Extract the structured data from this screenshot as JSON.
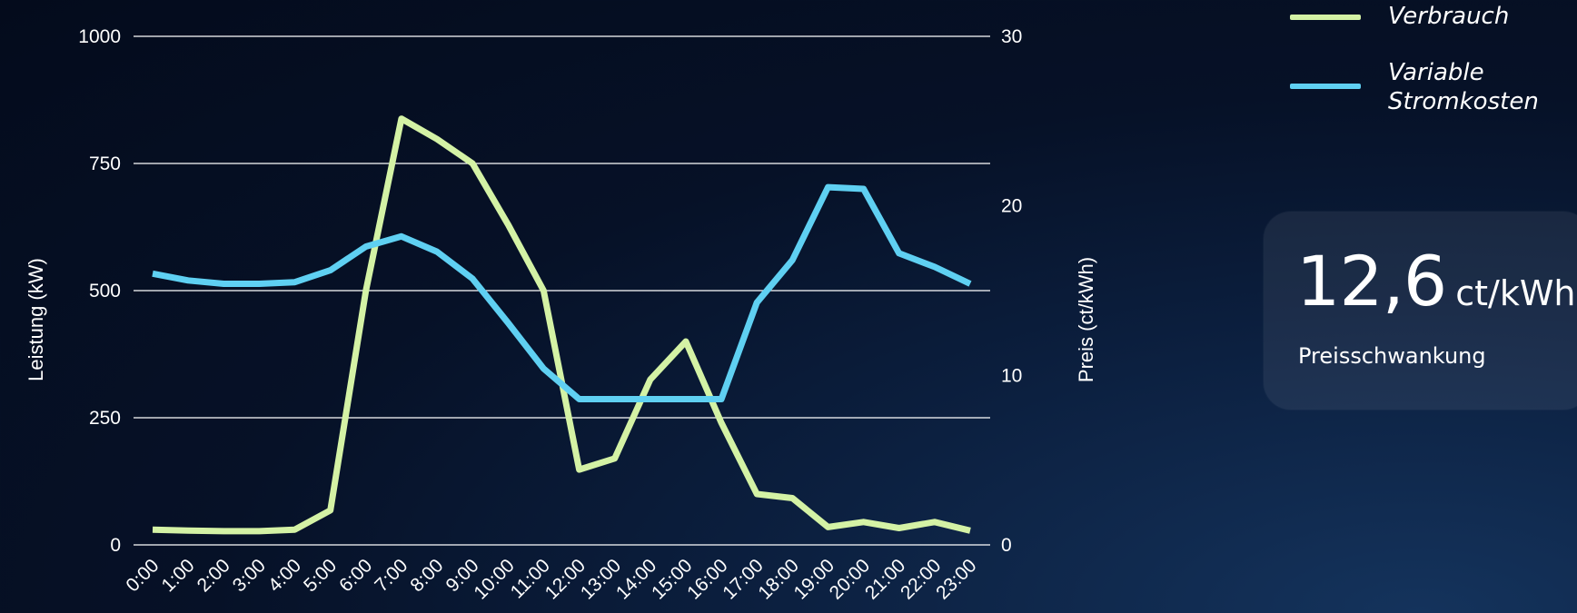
{
  "chart_data": {
    "type": "line",
    "x": [
      "0:00",
      "1:00",
      "2:00",
      "3:00",
      "4:00",
      "5:00",
      "6:00",
      "7:00",
      "8:00",
      "9:00",
      "10:00",
      "11:00",
      "12:00",
      "13:00",
      "14:00",
      "15:00",
      "16:00",
      "17:00",
      "18:00",
      "19:00",
      "20:00",
      "21:00",
      "22:00",
      "23:00"
    ],
    "ylabel": "Leistung (kW)",
    "y2label": "Preis (ct/kWh)",
    "ylim": [
      0,
      1000
    ],
    "y2lim": [
      0,
      30
    ],
    "yticks": [
      "0",
      "250",
      "500",
      "750",
      "1000"
    ],
    "y2ticks": [
      "0",
      "10",
      "20",
      "30"
    ],
    "grid": true,
    "legend_position": "top-right",
    "series": [
      {
        "name": "Verbrauch",
        "axis": "left",
        "color": "#d4f2a5",
        "values": [
          30,
          28,
          27,
          27,
          30,
          68,
          500,
          838,
          798,
          750,
          630,
          500,
          148,
          170,
          325,
          400,
          240,
          100,
          92,
          35,
          45,
          33,
          45,
          28
        ]
      },
      {
        "name": "Variable Stromkosten",
        "axis": "right",
        "color": "#5fd0f2",
        "values": [
          16.0,
          15.6,
          15.4,
          15.4,
          15.5,
          16.2,
          17.6,
          18.2,
          17.3,
          15.7,
          13.1,
          10.4,
          8.6,
          8.6,
          8.6,
          8.6,
          8.6,
          14.3,
          16.8,
          21.1,
          21.0,
          17.2,
          16.4,
          15.4
        ]
      }
    ]
  },
  "legend": {
    "items": [
      {
        "label": "Verbrauch",
        "color": "#d4f2a5"
      },
      {
        "label": "Variable\nStromkosten",
        "color": "#5fd0f2"
      }
    ]
  },
  "card": {
    "value": "12,6",
    "unit": "ct/kWh",
    "caption": "Preisschwankung"
  }
}
